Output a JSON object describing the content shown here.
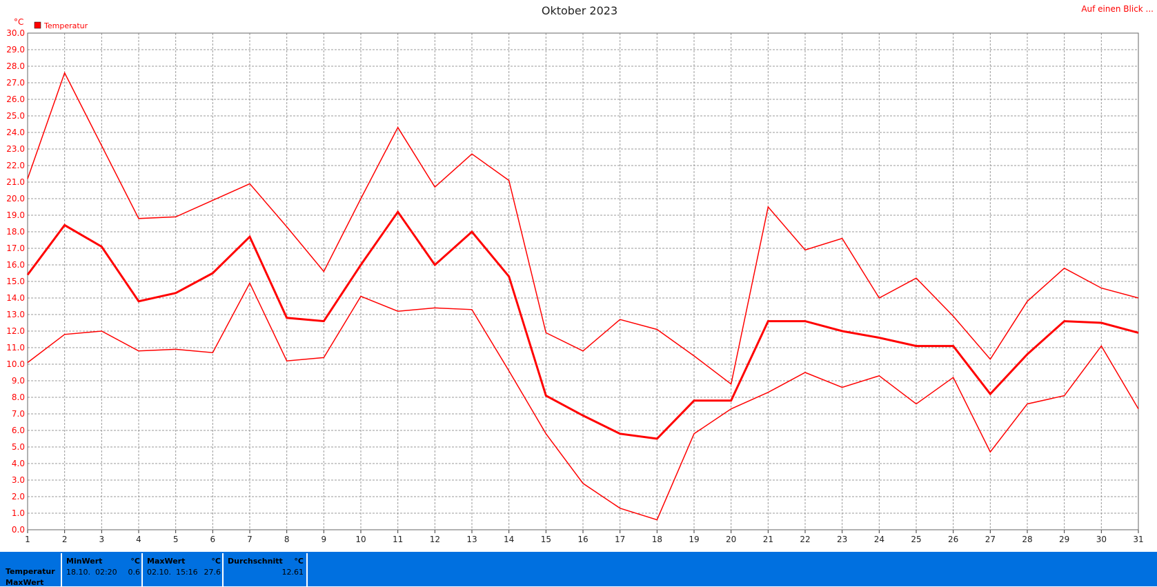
{
  "chart_data": {
    "type": "line",
    "title": "Oktober 2023",
    "y_unit": "°C",
    "link": "Auf einen Blick ...",
    "x": [
      1,
      2,
      3,
      4,
      5,
      6,
      7,
      8,
      9,
      10,
      11,
      12,
      13,
      14,
      15,
      16,
      17,
      18,
      19,
      20,
      21,
      22,
      23,
      24,
      25,
      26,
      27,
      28,
      29,
      30,
      31
    ],
    "xlim": [
      1,
      31
    ],
    "xticks": [
      1,
      2,
      3,
      4,
      5,
      6,
      7,
      8,
      9,
      10,
      11,
      12,
      13,
      14,
      15,
      16,
      17,
      18,
      19,
      20,
      21,
      22,
      23,
      24,
      25,
      26,
      27,
      28,
      29,
      30,
      31
    ],
    "ylim": [
      0,
      30
    ],
    "yticks": [
      {
        "value": 0,
        "label": "0.0"
      },
      {
        "value": 1,
        "label": "1.0"
      },
      {
        "value": 2,
        "label": "2.0"
      },
      {
        "value": 3,
        "label": "3.0"
      },
      {
        "value": 4,
        "label": "4.0"
      },
      {
        "value": 5,
        "label": "5.0"
      },
      {
        "value": 6,
        "label": "6.0"
      },
      {
        "value": 7,
        "label": "7.0"
      },
      {
        "value": 8,
        "label": "8.0"
      },
      {
        "value": 9,
        "label": "9.0"
      },
      {
        "value": 10,
        "label": "10.0"
      },
      {
        "value": 11,
        "label": "11.0"
      },
      {
        "value": 12,
        "label": "12.0"
      },
      {
        "value": 13,
        "label": "13.0"
      },
      {
        "value": 14,
        "label": "14.0"
      },
      {
        "value": 15,
        "label": "15.0"
      },
      {
        "value": 16,
        "label": "16.0"
      },
      {
        "value": 17,
        "label": "17.0"
      },
      {
        "value": 18,
        "label": "18.0"
      },
      {
        "value": 19,
        "label": "19.0"
      },
      {
        "value": 20,
        "label": "20.0"
      },
      {
        "value": 21,
        "label": "21.0"
      },
      {
        "value": 22,
        "label": "22.0"
      },
      {
        "value": 23,
        "label": "23.0"
      },
      {
        "value": 24,
        "label": "24.0"
      },
      {
        "value": 25,
        "label": "25.0"
      },
      {
        "value": 26,
        "label": "26.0"
      },
      {
        "value": 27,
        "label": "27.0"
      },
      {
        "value": 28,
        "label": "28.0"
      },
      {
        "value": 29,
        "label": "29.0"
      },
      {
        "value": 30,
        "label": "30.0"
      }
    ],
    "grid": true,
    "series": [
      {
        "name": "Temperatur",
        "color": "#ff0000",
        "width": 3,
        "values": [
          15.4,
          18.4,
          17.1,
          13.8,
          14.3,
          15.5,
          17.7,
          12.8,
          12.6,
          16.0,
          19.2,
          16.0,
          18.0,
          15.3,
          8.1,
          6.9,
          5.8,
          5.5,
          7.8,
          7.8,
          12.6,
          12.6,
          12.0,
          11.6,
          11.1,
          11.1,
          8.2,
          10.6,
          12.6,
          12.5,
          11.9
        ]
      },
      {
        "color": "#ff0000",
        "width": 1.5,
        "values": [
          21.2,
          27.6,
          23.2,
          18.8,
          18.9,
          19.9,
          20.9,
          18.3,
          15.6,
          20.0,
          24.3,
          20.7,
          22.7,
          21.1,
          11.9,
          10.8,
          12.7,
          12.1,
          10.5,
          8.8,
          19.5,
          16.9,
          17.6,
          14.0,
          15.2,
          12.9,
          10.3,
          13.8,
          15.8,
          14.6,
          14.0
        ]
      },
      {
        "color": "#ff0000",
        "width": 1.5,
        "values": [
          10.1,
          11.8,
          12.0,
          10.8,
          10.9,
          10.7,
          14.9,
          10.2,
          10.4,
          14.1,
          13.2,
          13.4,
          13.3,
          9.6,
          5.8,
          2.8,
          1.3,
          0.6,
          5.8,
          7.3,
          8.3,
          9.5,
          8.6,
          9.3,
          7.6,
          9.2,
          4.7,
          7.6,
          8.1,
          11.1,
          7.3
        ]
      }
    ]
  },
  "summary": {
    "row_labels": [
      "Temperatur",
      "MaxWert"
    ],
    "cells": [
      {
        "head": "MinWert",
        "unit": "°C",
        "when": "18.10.  02:20",
        "value": "0.6"
      },
      {
        "head": "MaxWert",
        "unit": "°C",
        "when": "02.10.  15:16",
        "value": "27.6"
      },
      {
        "head": "Durchschnitt",
        "unit": "°C",
        "when": null,
        "value": "12.61"
      }
    ]
  }
}
